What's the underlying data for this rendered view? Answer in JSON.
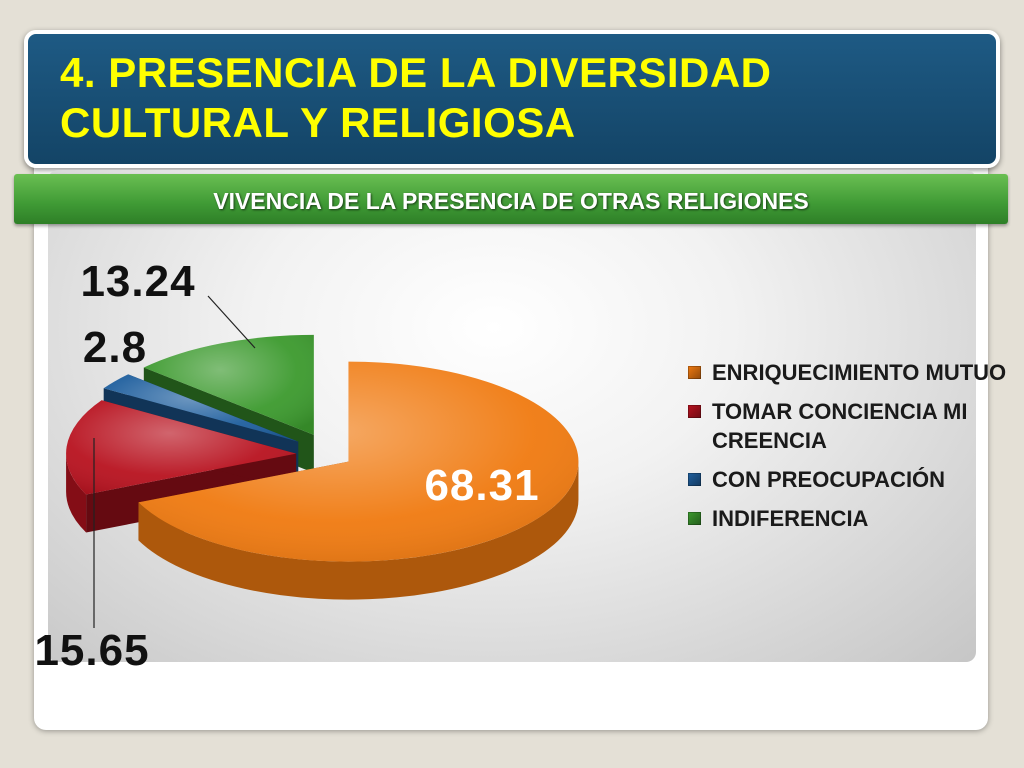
{
  "slide": {
    "title_line1": "4. PRESENCIA DE LA DIVERSIDAD",
    "title_line2": "CULTURAL Y RELIGIOSA"
  },
  "chart_data": {
    "type": "pie",
    "title": "VIVENCIA DE LA PRESENCIA DE OTRAS RELIGIONES",
    "slices": [
      {
        "label": "ENRIQUECIMIENTO MUTUO",
        "value": 68.31,
        "value_label": "68.31",
        "color": "#f07a10"
      },
      {
        "label": "TOMAR CONCIENCIA MI CREENCIA",
        "value": 15.65,
        "value_label": "15.65",
        "color": "#b8121f"
      },
      {
        "label": "CON PREOCUPACIÓN",
        "value": 2.8,
        "value_label": "2.8",
        "color": "#1f5f9e"
      },
      {
        "label": "INDIFERENCIA",
        "value": 13.24,
        "value_label": "13.24",
        "color": "#3c9a2e"
      }
    ],
    "legend_position": "right",
    "style": "3d-exploded"
  }
}
